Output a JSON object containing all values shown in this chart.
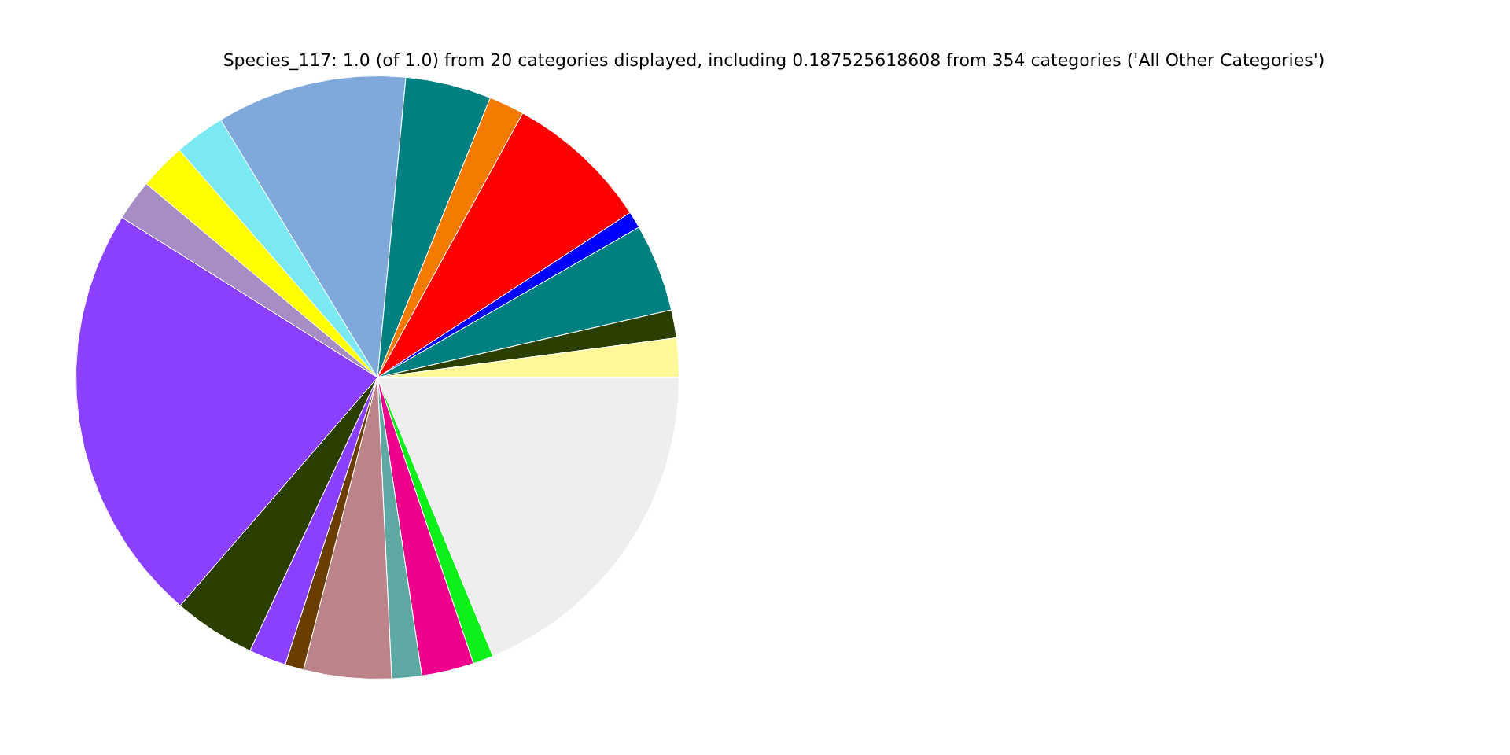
{
  "chart_data": {
    "type": "pie",
    "title": "Species_117: 1.0 (of 1.0) from 20 categories displayed, including 0.187525618608 from 354 categories ('All Other Categories')",
    "categories": [
      null,
      null,
      null,
      null,
      null,
      null,
      null,
      null,
      null,
      null,
      null,
      null,
      null,
      null,
      null,
      null,
      null,
      null,
      null,
      null
    ],
    "values": [
      2.1,
      1.5,
      4.7,
      0.9,
      7.8,
      1.9,
      4.6,
      10.2,
      2.7,
      2.5,
      2.2,
      22.55,
      4.4,
      2.0,
      1.0,
      4.7,
      1.6,
      2.8,
      1.1,
      18.75
    ],
    "colors": [
      "#fff899",
      "#2b3f00",
      "#008080",
      "#0000ff",
      "#ff0000",
      "#f57a00",
      "#008080",
      "#7fa9da",
      "#7be9f3",
      "#ffff00",
      "#a68dc3",
      "#8b40ff",
      "#2b3f00",
      "#8b40ff",
      "#6b3e00",
      "#bc8388",
      "#5fa9a5",
      "#ef008c",
      "#0df01a",
      "#eeeeee"
    ],
    "legend": false
  }
}
